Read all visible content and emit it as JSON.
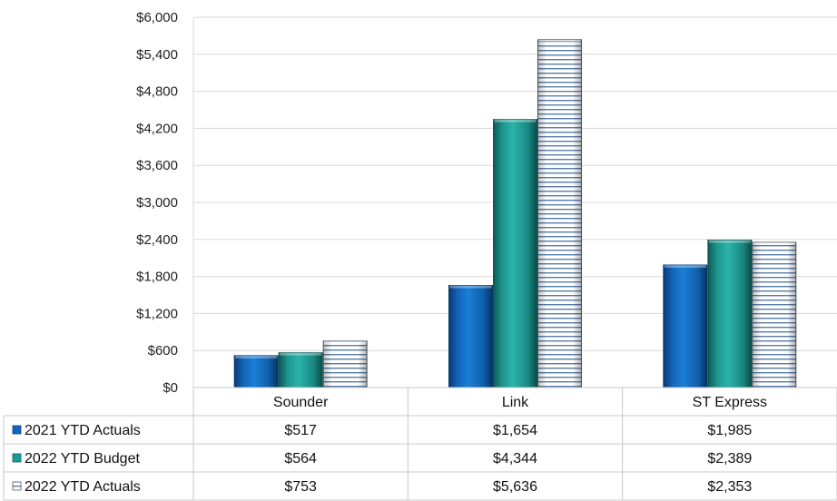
{
  "chart_data": {
    "type": "bar",
    "categories": [
      "Sounder",
      "Link",
      "ST Express"
    ],
    "series": [
      {
        "name": "2021 YTD Actuals",
        "values": [
          517,
          1654,
          1985
        ],
        "labels": [
          "$517",
          "$1,654",
          "$1,985"
        ],
        "color": "#1565c0",
        "pattern": "solid"
      },
      {
        "name": "2022 YTD Budget",
        "values": [
          564,
          4344,
          2389
        ],
        "labels": [
          "$564",
          "$4,344",
          "$2,389"
        ],
        "color": "#1a9c95",
        "pattern": "solid"
      },
      {
        "name": "2022 YTD Actuals",
        "values": [
          753,
          5636,
          2353
        ],
        "labels": [
          "$753",
          "$5,636",
          "$2,353"
        ],
        "color": "#5a6e85",
        "pattern": "horizontal-stripes"
      }
    ],
    "yticks": [
      "$0",
      "$600",
      "$1,200",
      "$1,800",
      "$2,400",
      "$3,000",
      "$3,600",
      "$4,200",
      "$4,800",
      "$5,400",
      "$6,000"
    ],
    "ylim": [
      0,
      6000
    ],
    "grid": true,
    "legend": "data-table"
  }
}
